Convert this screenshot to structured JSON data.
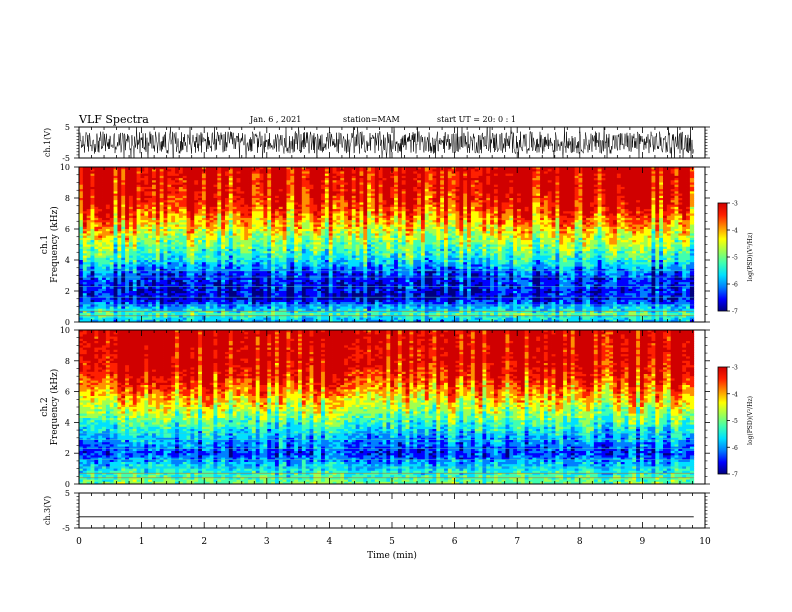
{
  "header": {
    "title": "VLF Spectra",
    "date": "Jan. 6  , 2021",
    "station": "station=MAM",
    "start_time": "start UT =  20: 0  : 1"
  },
  "chart_data": [
    {
      "type": "line",
      "title": "",
      "xlabel": "",
      "ylabel": "ch.1(V)",
      "xlim": [
        0,
        10
      ],
      "ylim": [
        -5,
        5
      ],
      "yticks": [
        "5",
        "-5"
      ],
      "description_values": {
        "typical_low": -4,
        "typical_high": 4,
        "data_end_min": 9.82
      },
      "color": "#000000"
    },
    {
      "type": "heatmap",
      "xlabel": "",
      "ylabel": "Frequency (kHz)",
      "channel_label": "ch.1",
      "xlim": [
        0,
        10
      ],
      "ylim": [
        0,
        10
      ],
      "yticks": [
        "0",
        "2",
        "4",
        "6",
        "8",
        "10"
      ],
      "data_end_min": 9.82,
      "intensity_profile": [
        [
          0,
          0.3
        ],
        [
          0.5,
          0.45
        ],
        [
          1.5,
          0.12
        ],
        [
          3,
          0.18
        ],
        [
          4,
          0.38
        ],
        [
          5,
          0.52
        ],
        [
          6,
          0.66
        ],
        [
          7,
          0.8
        ],
        [
          8,
          0.92
        ],
        [
          10,
          1.0
        ]
      ],
      "colorbar": {
        "label": "log(PSD)(V²/Hz)",
        "min": -7,
        "max": -3,
        "ticks": [
          "-3",
          "-4",
          "-5",
          "-6",
          "-7"
        ]
      }
    },
    {
      "type": "heatmap",
      "xlabel": "",
      "ylabel": "Frequency (kHz)",
      "channel_label": "ch.2",
      "xlim": [
        0,
        10
      ],
      "ylim": [
        0,
        10
      ],
      "yticks": [
        "0",
        "2",
        "4",
        "6",
        "8",
        "10"
      ],
      "data_end_min": 9.82,
      "intensity_profile": [
        [
          0,
          0.5
        ],
        [
          0.8,
          0.4
        ],
        [
          2,
          0.18
        ],
        [
          3,
          0.3
        ],
        [
          4,
          0.45
        ],
        [
          5,
          0.6
        ],
        [
          6,
          0.75
        ],
        [
          7,
          0.88
        ],
        [
          8,
          0.97
        ],
        [
          10,
          1.0
        ]
      ],
      "colorbar": {
        "label": "log(PSD)(V²/Hz)",
        "min": -7,
        "max": -3,
        "ticks": [
          "-3",
          "-4",
          "-5",
          "-6",
          "-7"
        ]
      }
    },
    {
      "type": "line",
      "xlabel": "Time (min)",
      "ylabel": "ch.3(V)",
      "xlim": [
        0,
        10
      ],
      "ylim": [
        -5,
        5
      ],
      "yticks": [
        "5",
        "-5"
      ],
      "constant_value": -1.8,
      "data_end_min": 9.82,
      "xticks": [
        "0",
        "1",
        "2",
        "3",
        "4",
        "5",
        "6",
        "7",
        "8",
        "9",
        "10"
      ],
      "color": "#000000"
    }
  ],
  "colormap": [
    "#00007f",
    "#0000ff",
    "#0080ff",
    "#00e0ff",
    "#40ffb0",
    "#a0ff50",
    "#ffff00",
    "#ff9000",
    "#ff2000",
    "#d00000"
  ]
}
